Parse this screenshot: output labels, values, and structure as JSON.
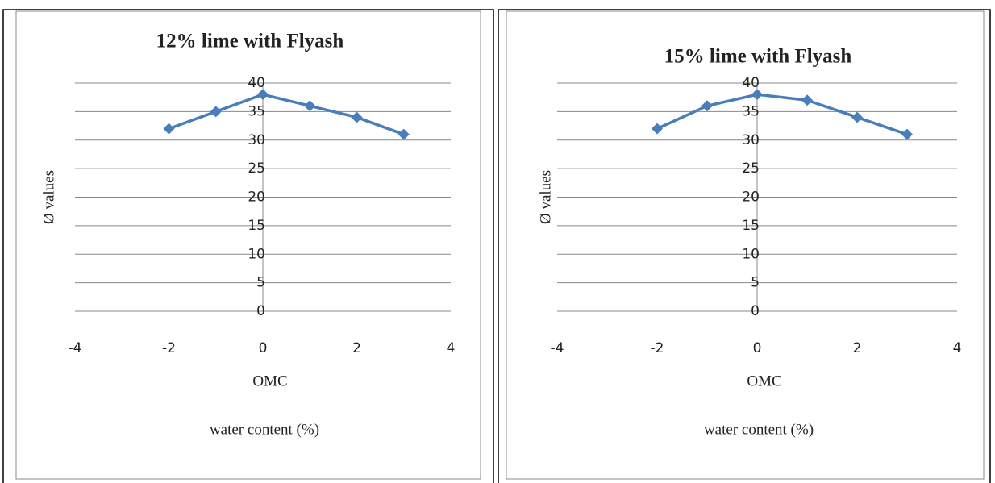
{
  "chart_data": [
    {
      "type": "line",
      "title": "12% lime with Flyash",
      "xlabel": "OMC",
      "xlabel2": "water content (%)",
      "ylabel": "Ø values",
      "x": [
        -2,
        -1,
        0,
        1,
        2,
        3
      ],
      "series": [
        {
          "name": "Ø values",
          "color": "#4a7ebb",
          "values": [
            32,
            35,
            38,
            36,
            34,
            31
          ]
        }
      ],
      "xlim": [
        -4,
        4
      ],
      "xticks": [
        -4,
        -2,
        0,
        2,
        4
      ],
      "ylim": [
        0,
        40
      ],
      "yticks": [
        0,
        5,
        10,
        15,
        20,
        25,
        30,
        35,
        40
      ],
      "grid": true
    },
    {
      "type": "line",
      "title": "15% lime with Flyash",
      "xlabel": "OMC",
      "xlabel2": "water content (%)",
      "ylabel": "Ø values",
      "x": [
        -2,
        -1,
        0,
        1,
        2,
        3
      ],
      "series": [
        {
          "name": "Ø values",
          "color": "#4a7ebb",
          "values": [
            32,
            36,
            38,
            37,
            34,
            31
          ]
        }
      ],
      "xlim": [
        -4,
        4
      ],
      "xticks": [
        -4,
        -2,
        0,
        2,
        4
      ],
      "ylim": [
        0,
        40
      ],
      "yticks": [
        0,
        5,
        10,
        15,
        20,
        25,
        30,
        35,
        40
      ],
      "grid": true
    }
  ]
}
